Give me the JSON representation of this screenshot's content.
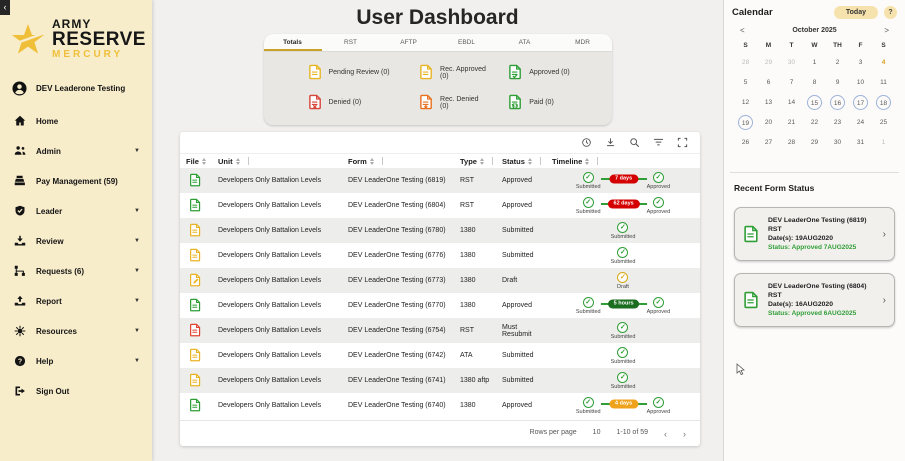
{
  "colors": {
    "sidebar_bg": "#f8edcb",
    "gold": "#f0bf3a",
    "tab_accent": "#c9a227",
    "green": "#2f9e37",
    "yellow": "#e9b424",
    "red": "#d8453a",
    "badge_red": "#d40000",
    "badge_green": "#1b6e20",
    "badge_orange": "#efa31d",
    "calendar_circle": "#9db3da"
  },
  "sidebar": {
    "collapse_icon": "‹",
    "logo": {
      "army": "ARMY",
      "reserve": "RESERVE",
      "mercury": "MERCURY"
    },
    "user": {
      "name": "DEV Leaderone Testing"
    },
    "items": [
      {
        "id": "home",
        "label": "Home",
        "caret": false
      },
      {
        "id": "admin",
        "label": "Admin",
        "caret": true
      },
      {
        "id": "pay-management",
        "label": "Pay Management (59)",
        "caret": false
      },
      {
        "id": "leader",
        "label": "Leader",
        "caret": true
      },
      {
        "id": "review",
        "label": "Review",
        "caret": true
      },
      {
        "id": "requests",
        "label": "Requests (6)",
        "caret": true
      },
      {
        "id": "report",
        "label": "Report",
        "caret": true
      },
      {
        "id": "resources",
        "label": "Resources",
        "caret": true
      },
      {
        "id": "help",
        "label": "Help",
        "caret": true
      },
      {
        "id": "sign-out",
        "label": "Sign Out",
        "caret": false
      }
    ]
  },
  "main": {
    "title": "User Dashboard",
    "tabs": [
      {
        "label": "Totals",
        "active": true
      },
      {
        "label": "RST",
        "active": false
      },
      {
        "label": "AFTP",
        "active": false
      },
      {
        "label": "EBDL",
        "active": false
      },
      {
        "label": "ATA",
        "active": false
      },
      {
        "label": "MDR",
        "active": false
      }
    ],
    "summary": [
      {
        "label": "Pending Review (0)",
        "color": "#e9b424",
        "variant": "pending"
      },
      {
        "label": "Rec. Approved (0)",
        "color": "#e9b424",
        "variant": "rec-approved"
      },
      {
        "label": "Approved (0)",
        "color": "#2f9e37",
        "variant": "approved"
      },
      {
        "label": "Denied (0)",
        "color": "#d8453a",
        "variant": "denied"
      },
      {
        "label": "Rec. Denied (0)",
        "color": "#e8701f",
        "variant": "rec-denied"
      },
      {
        "label": "Paid (0)",
        "color": "#2f9e37",
        "variant": "paid"
      }
    ],
    "toolbar_icons": [
      "history",
      "download",
      "search",
      "filter",
      "fullscreen"
    ],
    "table": {
      "headers": [
        "File",
        "Unit",
        "Form",
        "Type",
        "Status",
        "Timeline"
      ],
      "rows": [
        {
          "file_color": "#2f9e37",
          "file_variant": "doc",
          "unit": "Developers Only Battalion Levels",
          "form": "DEV LeaderOne Testing (6819)",
          "type": "RST",
          "status": "Approved",
          "timeline": {
            "kind": "range",
            "start": "Submitted",
            "end": "Approved",
            "badge": "7 days",
            "badge_color": "#d40000"
          }
        },
        {
          "file_color": "#2f9e37",
          "file_variant": "doc",
          "unit": "Developers Only Battalion Levels",
          "form": "DEV LeaderOne Testing (6804)",
          "type": "RST",
          "status": "Approved",
          "timeline": {
            "kind": "range",
            "start": "Submitted",
            "end": "Approved",
            "badge": "62 days",
            "badge_color": "#d40000"
          }
        },
        {
          "file_color": "#e9b424",
          "file_variant": "doc",
          "unit": "Developers Only Battalion Levels",
          "form": "DEV LeaderOne Testing (6780)",
          "type": "1380",
          "status": "Submitted",
          "timeline": {
            "kind": "single",
            "label": "Submitted",
            "color": "#2f9e37"
          }
        },
        {
          "file_color": "#e9b424",
          "file_variant": "doc",
          "unit": "Developers Only Battalion Levels",
          "form": "DEV LeaderOne Testing (6776)",
          "type": "1380",
          "status": "Submitted",
          "timeline": {
            "kind": "single",
            "label": "Submitted",
            "color": "#2f9e37"
          }
        },
        {
          "file_color": "#e9b424",
          "file_variant": "draft",
          "unit": "Developers Only Battalion Levels",
          "form": "DEV LeaderOne Testing (6773)",
          "type": "1380",
          "status": "Draft",
          "timeline": {
            "kind": "single",
            "label": "Draft",
            "color": "#d9a916"
          }
        },
        {
          "file_color": "#2f9e37",
          "file_variant": "doc",
          "unit": "Developers Only Battalion Levels",
          "form": "DEV LeaderOne Testing (6770)",
          "type": "1380",
          "status": "Approved",
          "timeline": {
            "kind": "range",
            "start": "Submitted",
            "end": "Approved",
            "badge": "5 hours",
            "badge_color": "#1b6e20"
          }
        },
        {
          "file_color": "#e04430",
          "file_variant": "doc",
          "unit": "Developers Only Battalion Levels",
          "form": "DEV LeaderOne Testing (6754)",
          "type": "RST",
          "status": "Must Resubmit",
          "timeline": {
            "kind": "single",
            "label": "Submitted",
            "color": "#2f9e37"
          }
        },
        {
          "file_color": "#e9b424",
          "file_variant": "doc",
          "unit": "Developers Only Battalion Levels",
          "form": "DEV LeaderOne Testing (6742)",
          "type": "ATA",
          "status": "Submitted",
          "timeline": {
            "kind": "single",
            "label": "Submitted",
            "color": "#2f9e37"
          }
        },
        {
          "file_color": "#e9b424",
          "file_variant": "doc",
          "unit": "Developers Only Battalion Levels",
          "form": "DEV LeaderOne Testing (6741)",
          "type": "1380 aftp",
          "status": "Submitted",
          "timeline": {
            "kind": "single",
            "label": "Submitted",
            "color": "#2f9e37"
          }
        },
        {
          "file_color": "#2f9e37",
          "file_variant": "doc",
          "unit": "Developers Only Battalion Levels",
          "form": "DEV LeaderOne Testing (6740)",
          "type": "1380",
          "status": "Approved",
          "timeline": {
            "kind": "range",
            "start": "Submitted",
            "end": "Approved",
            "badge": "4 days",
            "badge_color": "#efa31d"
          }
        }
      ],
      "pagination": {
        "rows_per_page_label": "Rows per page",
        "rows_per_page": "10",
        "range": "1-10 of 59",
        "prev": "‹",
        "next": "›"
      }
    }
  },
  "calendar": {
    "title": "Calendar",
    "today_button": "Today",
    "help_button": "?",
    "prev": "<",
    "next": ">",
    "month": "October 2025",
    "day_headers": [
      "S",
      "M",
      "T",
      "W",
      "TH",
      "F",
      "S"
    ],
    "weeks": [
      [
        {
          "d": "28",
          "muted": true
        },
        {
          "d": "29",
          "muted": true
        },
        {
          "d": "30",
          "muted": true
        },
        {
          "d": "1"
        },
        {
          "d": "2"
        },
        {
          "d": "3"
        },
        {
          "d": "4",
          "accent": true
        }
      ],
      [
        {
          "d": "5"
        },
        {
          "d": "6"
        },
        {
          "d": "7"
        },
        {
          "d": "8"
        },
        {
          "d": "9"
        },
        {
          "d": "10"
        },
        {
          "d": "11"
        }
      ],
      [
        {
          "d": "12"
        },
        {
          "d": "13"
        },
        {
          "d": "14"
        },
        {
          "d": "15",
          "circled": true
        },
        {
          "d": "16",
          "circled": true
        },
        {
          "d": "17",
          "circled": true
        },
        {
          "d": "18",
          "circled": true
        }
      ],
      [
        {
          "d": "19",
          "circled": true
        },
        {
          "d": "20"
        },
        {
          "d": "21"
        },
        {
          "d": "22"
        },
        {
          "d": "23"
        },
        {
          "d": "24"
        },
        {
          "d": "25"
        }
      ],
      [
        {
          "d": "26"
        },
        {
          "d": "27"
        },
        {
          "d": "28"
        },
        {
          "d": "29"
        },
        {
          "d": "30"
        },
        {
          "d": "31"
        },
        {
          "d": "1",
          "muted": true
        }
      ]
    ]
  },
  "recent": {
    "title": "Recent Form Status",
    "cards": [
      {
        "title": "DEV LeaderOne Testing (6819)",
        "form": "RST",
        "dates": "Date(s): 19AUG2020",
        "status": "Status: Approved 7AUG2025"
      },
      {
        "title": "DEV LeaderOne Testing (6804)",
        "form": "RST",
        "dates": "Date(s): 16AUG2020",
        "status": "Status: Approved 6AUG2025"
      }
    ]
  }
}
